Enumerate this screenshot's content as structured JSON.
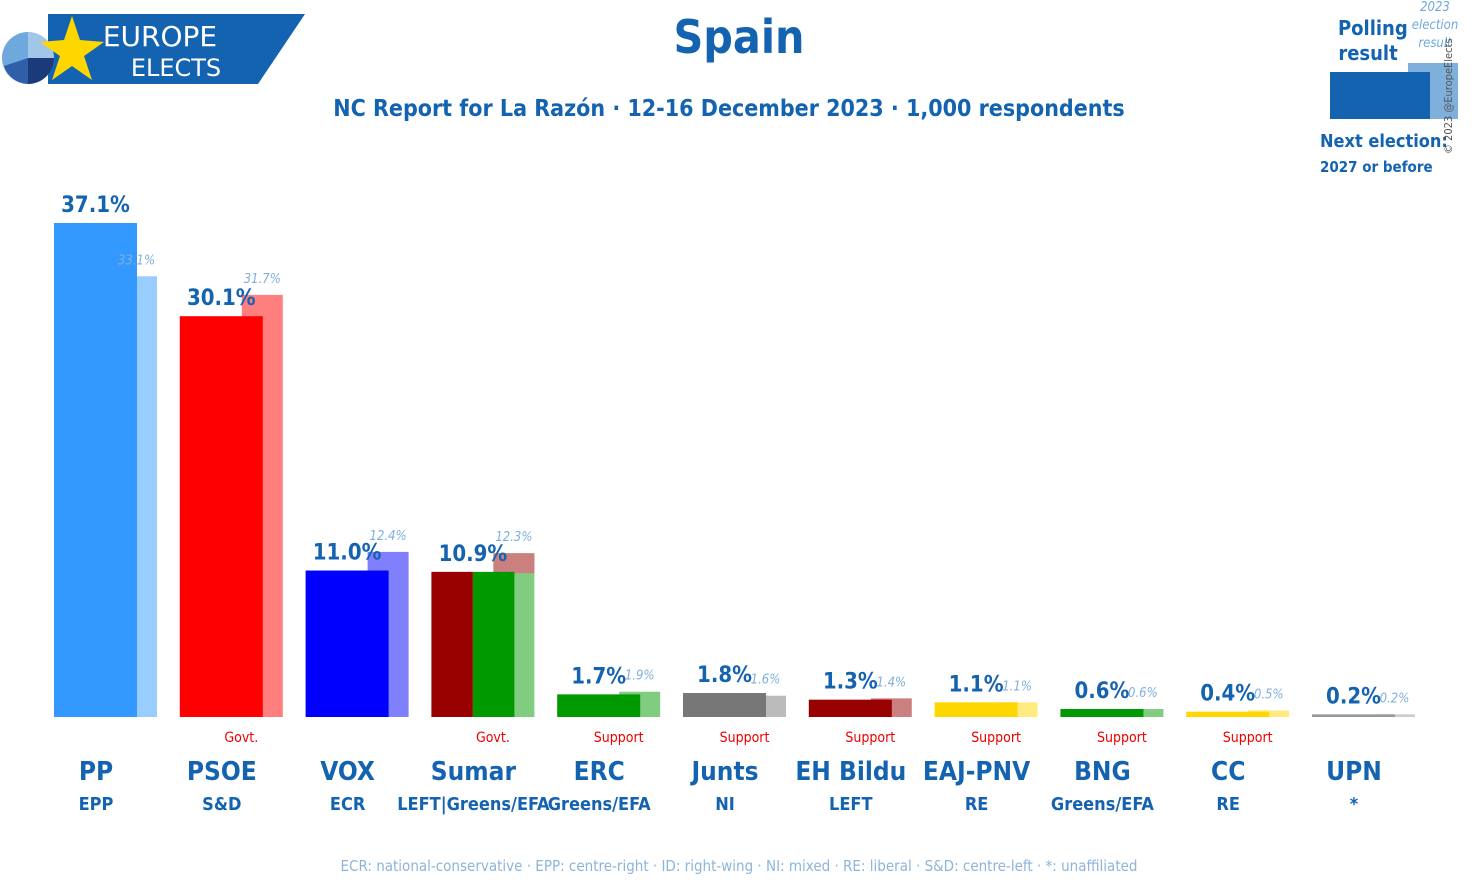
{
  "header": {
    "logo_line1": "EUROPE",
    "logo_line2": "ELECTS",
    "title": "Spain",
    "subtitle": "NC Report for La Razón · 12-16 December 2023 · 1,000 respondents"
  },
  "legend": {
    "polling_label_1": "Polling",
    "polling_label_2": "result",
    "election_label_1": "2023",
    "election_label_2": "election",
    "election_label_3": "result",
    "next_election_label": "Next election:",
    "next_election_value": "2027 or before",
    "copyright": "© 2023 @EuropeElects"
  },
  "footer": {
    "note": "ECR: national-conservative · EPP: centre-right · ID: right-wing · NI: mixed · RE: liberal · S&D: centre-left · *: unaffiliated"
  },
  "chart_data": {
    "type": "bar",
    "categories": [
      "PP",
      "PSOE",
      "VOX",
      "Sumar",
      "ERC",
      "Junts",
      "EH Bildu",
      "EAJ-PNV",
      "BNG",
      "CC",
      "UPN"
    ],
    "groups": [
      "EPP",
      "S&D",
      "ECR",
      "LEFT|Greens/EFA",
      "Greens/EFA",
      "NI",
      "LEFT",
      "RE",
      "Greens/EFA",
      "RE",
      "*"
    ],
    "status": [
      "",
      "Govt.",
      "",
      "Govt.",
      "Support",
      "Support",
      "Support",
      "Support",
      "Support",
      "Support",
      ""
    ],
    "series": [
      {
        "name": "Polling result",
        "values": [
          37.1,
          30.1,
          11.0,
          10.9,
          1.7,
          1.8,
          1.3,
          1.1,
          0.6,
          0.4,
          0.2
        ],
        "labels": [
          "37.1%",
          "30.1%",
          "11.0%",
          "10.9%",
          "1.7%",
          "1.8%",
          "1.3%",
          "1.1%",
          "0.6%",
          "0.4%",
          "0.2%"
        ]
      },
      {
        "name": "2023 election result",
        "values": [
          33.1,
          31.7,
          12.4,
          12.3,
          1.9,
          1.6,
          1.4,
          1.1,
          0.6,
          0.5,
          0.2
        ],
        "labels": [
          "33.1%",
          "31.7%",
          "12.4%",
          "12.3%",
          "1.9%",
          "1.6%",
          "1.4%",
          "1.1%",
          "0.6%",
          "0.5%",
          "0.2%"
        ]
      }
    ],
    "colors": {
      "poll": [
        "#3399ff",
        "#ff0000",
        "#0000ff",
        "#009900",
        "#009900",
        "#777777",
        "#990000",
        "#ffd700",
        "#009900",
        "#ffd700",
        "#999999"
      ],
      "election": [
        "#99ccff",
        "#ff7f7f",
        "#8080ff",
        "#80cc80",
        "#80cc80",
        "#bbbbbb",
        "#cc7f7f",
        "#ffeb80",
        "#80cc80",
        "#ffeb80",
        "#cccccc"
      ],
      "sumar_split_poll": "#990000",
      "sumar_split_election": "#cc7f7f",
      "label_text": "#1463b0",
      "status_text": "#ee0000"
    },
    "sumar_split_value": 1.5,
    "ylim": [
      0,
      37.1
    ]
  }
}
